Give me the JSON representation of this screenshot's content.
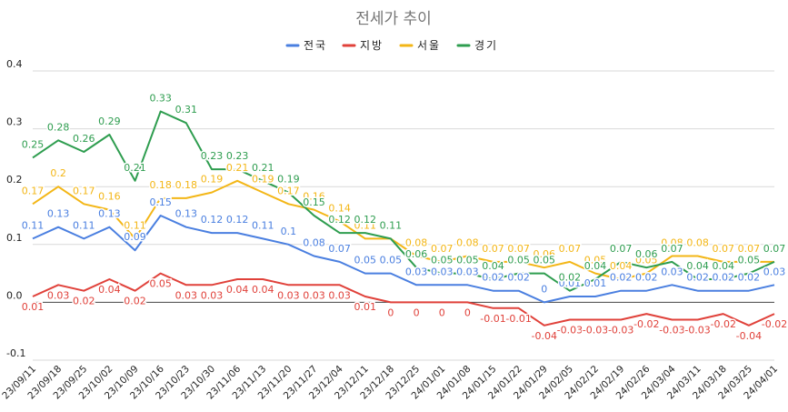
{
  "chart_data": {
    "type": "line",
    "title": "전세가 추이",
    "xlabel": "",
    "ylabel": "",
    "ylim": [
      -0.1,
      0.4
    ],
    "yticks": [
      "-0.1",
      "0.0",
      "0.1",
      "0.2",
      "0.3",
      "0.4"
    ],
    "grid": true,
    "legend_position": "top",
    "categories": [
      "23/09/11",
      "23/09/18",
      "23/09/25",
      "23/10/02",
      "23/10/09",
      "23/10/16",
      "23/10/23",
      "23/10/30",
      "23/11/06",
      "23/11/13",
      "23/11/20",
      "23/11/27",
      "23/12/04",
      "23/12/11",
      "23/12/18",
      "23/12/25",
      "24/01/01",
      "24/01/08",
      "24/01/15",
      "24/01/22",
      "24/01/29",
      "24/02/05",
      "24/02/12",
      "24/02/19",
      "24/02/26",
      "24/03/04",
      "24/03/11",
      "24/03/18",
      "24/03/25",
      "24/04/01"
    ],
    "series": [
      {
        "name": "전국",
        "color": "#4a7fe0",
        "values": [
          0.11,
          0.13,
          0.11,
          0.13,
          0.09,
          0.15,
          0.13,
          0.12,
          0.12,
          0.11,
          0.1,
          0.08,
          0.07,
          0.05,
          0.05,
          0.03,
          0.03,
          0.03,
          0.02,
          0.02,
          0,
          0.01,
          0.01,
          0.02,
          0.02,
          0.03,
          0.02,
          0.02,
          0.02,
          0.03
        ]
      },
      {
        "name": "지방",
        "color": "#e0413a",
        "values": [
          0.01,
          0.03,
          0.02,
          0.04,
          0.02,
          0.05,
          0.03,
          0.03,
          0.04,
          0.04,
          0.03,
          0.03,
          0.03,
          0.01,
          0,
          0,
          0,
          0,
          -0.01,
          -0.01,
          -0.04,
          -0.03,
          -0.03,
          -0.03,
          -0.02,
          -0.03,
          -0.03,
          -0.02,
          -0.04,
          -0.02
        ]
      },
      {
        "name": "서울",
        "color": "#f3b616",
        "values": [
          0.17,
          0.2,
          0.17,
          0.16,
          0.11,
          0.18,
          0.18,
          0.19,
          0.21,
          0.19,
          0.17,
          0.16,
          0.14,
          0.11,
          0.11,
          0.08,
          0.07,
          0.08,
          0.07,
          0.07,
          0.06,
          0.07,
          0.05,
          0.04,
          0.05,
          0.08,
          0.08,
          0.07,
          0.07,
          0.07
        ]
      },
      {
        "name": "경기",
        "color": "#2e9d4f",
        "values": [
          0.25,
          0.28,
          0.26,
          0.29,
          0.21,
          0.33,
          0.31,
          0.23,
          0.23,
          0.21,
          0.19,
          0.15,
          0.12,
          0.12,
          0.11,
          0.06,
          0.05,
          0.05,
          0.04,
          0.05,
          0.05,
          0.02,
          0.04,
          0.07,
          0.06,
          0.07,
          0.04,
          0.04,
          0.05,
          0.07
        ]
      }
    ]
  }
}
